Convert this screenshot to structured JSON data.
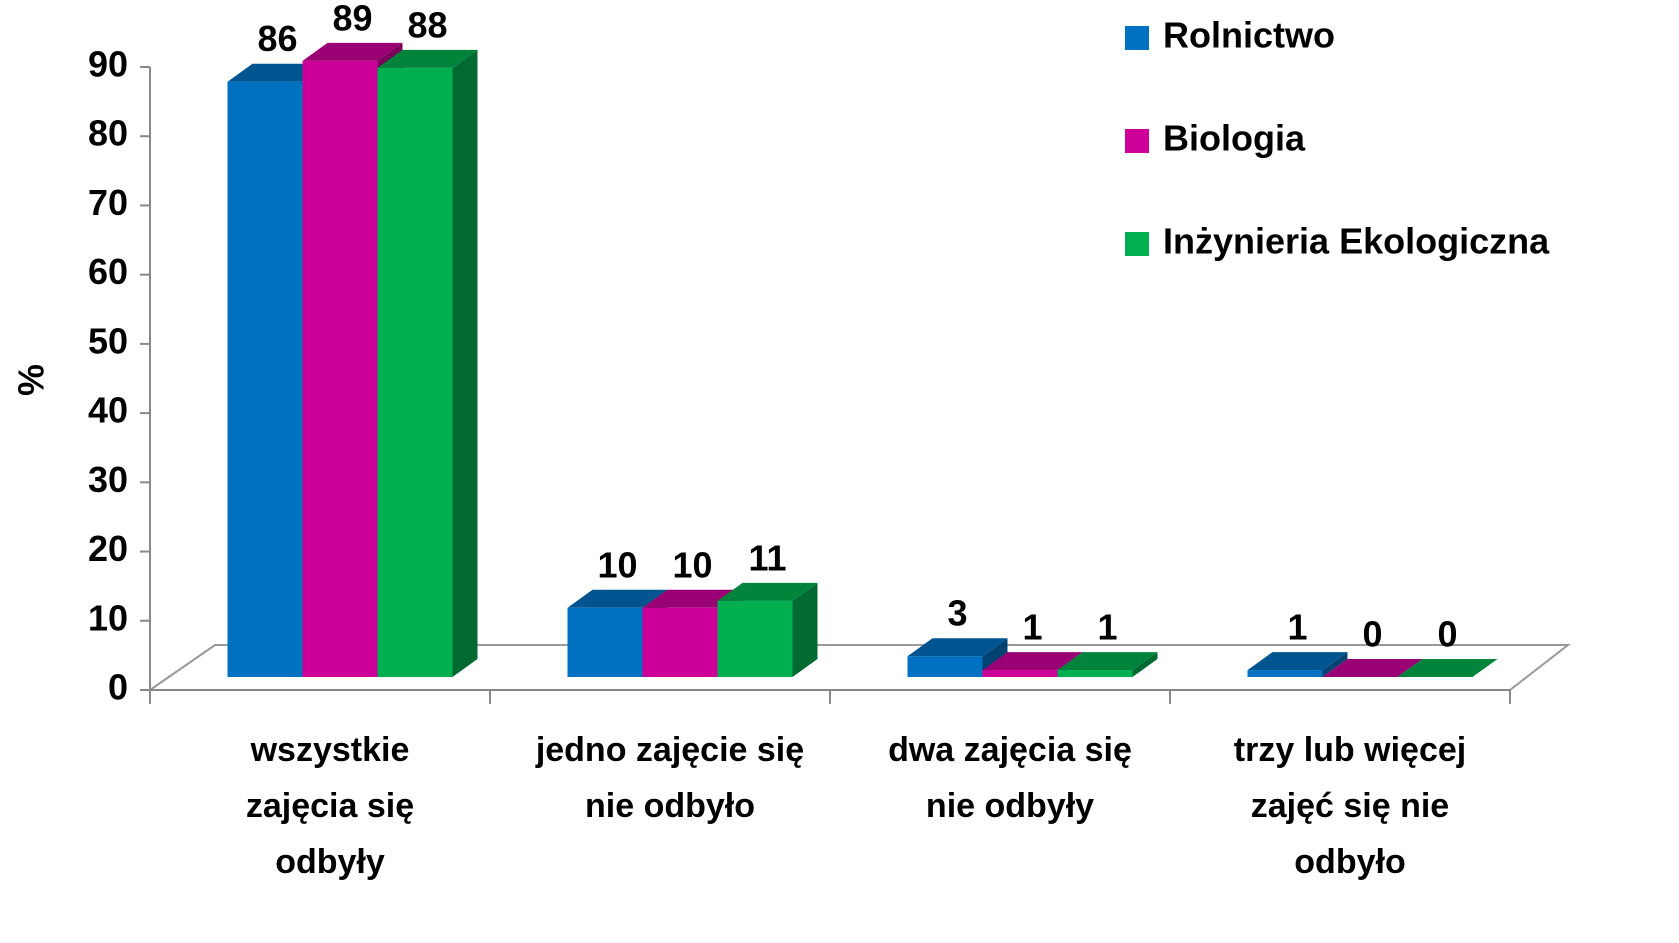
{
  "chart_data": {
    "type": "bar3d",
    "ylabel": "%",
    "categories": [
      "wszystkie\nzajęcia się\nodbyły",
      "jedno zajęcie się\nnie odbyło",
      "dwa zajęcia się\nnie odbyły",
      "trzy lub więcej\nzajęć się nie\nodbyło"
    ],
    "series": [
      {
        "name": "Rolnictwo",
        "color": "#0070c0",
        "values": [
          86,
          10,
          3,
          1
        ]
      },
      {
        "name": "Biologia",
        "color": "#cc0099",
        "values": [
          89,
          10,
          1,
          0
        ]
      },
      {
        "name": "Inżynieria Ekologiczna",
        "color": "#00b050",
        "values": [
          88,
          11,
          1,
          0
        ]
      }
    ],
    "ylim": [
      0,
      90
    ],
    "yticks": [
      0,
      10,
      20,
      30,
      40,
      50,
      60,
      70,
      80,
      90
    ],
    "legend": "upper right",
    "data_labels": true
  }
}
